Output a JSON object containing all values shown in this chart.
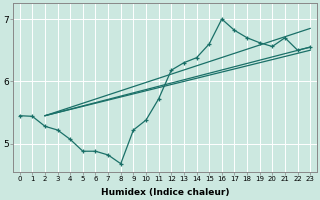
{
  "xlabel": "Humidex (Indice chaleur)",
  "ylabel": "",
  "bg_color": "#cce8e0",
  "grid_color": "#ffffff",
  "line_color": "#1a7068",
  "xlim": [
    -0.5,
    23.5
  ],
  "ylim": [
    4.55,
    7.25
  ],
  "yticks": [
    5,
    6,
    7
  ],
  "xticks": [
    0,
    1,
    2,
    3,
    4,
    5,
    6,
    7,
    8,
    9,
    10,
    11,
    12,
    13,
    14,
    15,
    16,
    17,
    18,
    19,
    20,
    21,
    22,
    23
  ],
  "series1_x": [
    0,
    1,
    2,
    3,
    4,
    5,
    6,
    7,
    8,
    9,
    10,
    11,
    12,
    13,
    14,
    15,
    16,
    17,
    18,
    19,
    20,
    21,
    22,
    23
  ],
  "series1_y": [
    5.45,
    5.44,
    5.28,
    5.22,
    5.07,
    4.88,
    4.88,
    4.82,
    4.68,
    5.22,
    5.38,
    5.72,
    6.18,
    6.3,
    6.38,
    6.6,
    7.0,
    6.82,
    6.7,
    6.62,
    6.56,
    6.7,
    6.5,
    6.55
  ],
  "line2_x": [
    2,
    23
  ],
  "line2_y": [
    5.45,
    6.85
  ],
  "line3_x": [
    2,
    23
  ],
  "line3_y": [
    5.45,
    6.55
  ],
  "line4_x": [
    2,
    23
  ],
  "line4_y": [
    5.45,
    6.5
  ]
}
